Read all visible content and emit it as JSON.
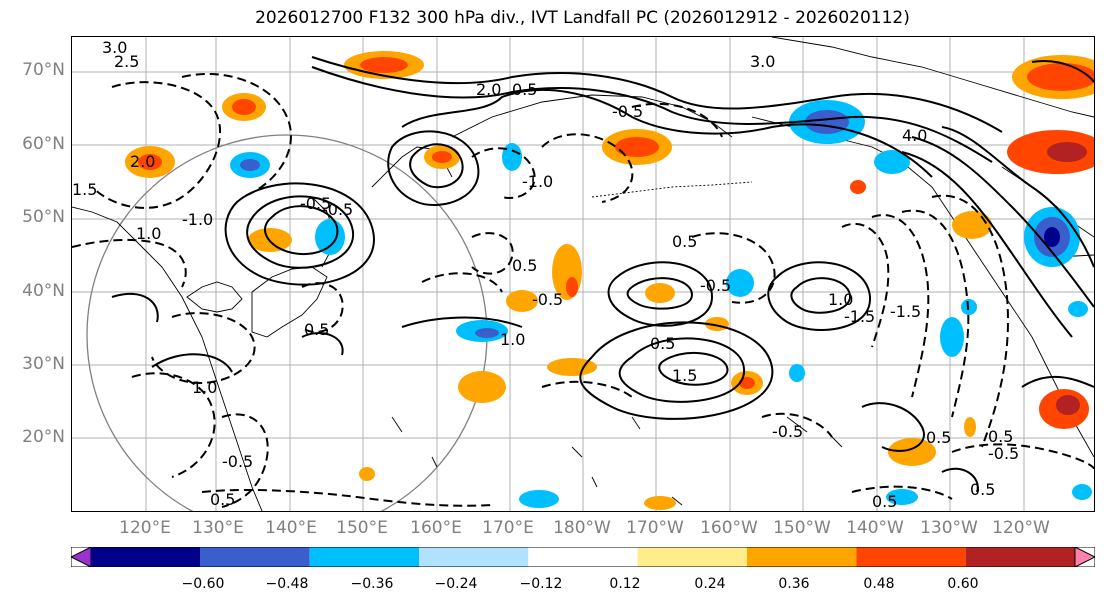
{
  "title": "2026012700 F132 300 hPa div., IVT Landfall PC (2026012912 - 2026020112)",
  "lat_labels": [
    "70°N",
    "60°N",
    "50°N",
    "40°N",
    "30°N",
    "20°N"
  ],
  "lon_labels": [
    "120°E",
    "130°E",
    "140°E",
    "150°E",
    "160°E",
    "170°E",
    "180°W",
    "170°W",
    "160°W",
    "150°W",
    "140°W",
    "130°W",
    "120°W"
  ],
  "colorbar": {
    "colors": [
      "#9932CC",
      "#00008B",
      "#3A5FCD",
      "#00BFFF",
      "#B0E2FF",
      "#FFFFFF",
      "#FFEC8B",
      "#FFA500",
      "#FF4500",
      "#B22222",
      "#FF82AB"
    ],
    "tick_labels": [
      "−0.60",
      "−0.48",
      "−0.36",
      "−0.24",
      "−0.12",
      "0.12",
      "0.24",
      "0.36",
      "0.48",
      "0.60"
    ]
  },
  "contour_labels": [
    "3.0",
    "2.5",
    "2.0",
    "1.0",
    "1.5",
    "0.5",
    "-0.5",
    "-1.0",
    "-1.5",
    "4.0",
    "-0.5",
    "0.5",
    "1.0",
    "-0.5",
    "0.5",
    "-0.5",
    "0.5",
    "-0.5",
    "-1.0",
    "3.0",
    "2.0",
    "0.5",
    "1.0",
    "-0.5",
    "0.5",
    "1.5",
    "-1.5",
    "1.0",
    "0.5",
    "0.5",
    "0.5",
    "-0.5",
    "-0.5",
    "0.5"
  ]
}
